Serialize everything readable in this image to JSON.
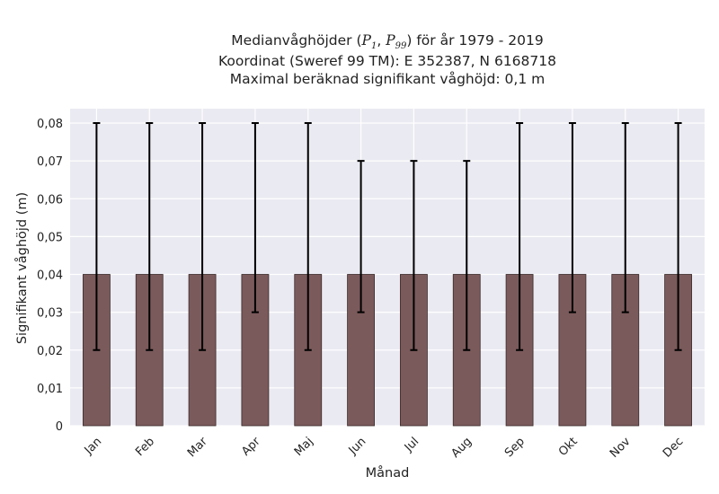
{
  "chart_data": {
    "type": "bar",
    "title_lines": [
      "Medianvåghöjder (P1, P99) för år 1979 - 2019",
      "Koordinat (Sweref 99 TM): E 352387, N 6168718",
      "Maximal beräknad signifikant våghöjd: 0,1 m"
    ],
    "xlabel": "Månad",
    "ylabel": "Signifikant våghöjd (m)",
    "categories": [
      "Jan",
      "Feb",
      "Mar",
      "Apr",
      "Maj",
      "Jun",
      "Jul",
      "Aug",
      "Sep",
      "Okt",
      "Nov",
      "Dec"
    ],
    "values": [
      0.04,
      0.04,
      0.04,
      0.04,
      0.04,
      0.04,
      0.04,
      0.04,
      0.04,
      0.04,
      0.04,
      0.04
    ],
    "p1": [
      0.02,
      0.02,
      0.02,
      0.03,
      0.02,
      0.03,
      0.02,
      0.02,
      0.02,
      0.03,
      0.03,
      0.02
    ],
    "p99": [
      0.08,
      0.08,
      0.08,
      0.08,
      0.08,
      0.07,
      0.07,
      0.07,
      0.08,
      0.08,
      0.08,
      0.08
    ],
    "ylim": [
      0,
      0.08
    ],
    "yticks": [
      "0",
      "0,01",
      "0,02",
      "0,03",
      "0,04",
      "0,05",
      "0,06",
      "0,07",
      "0,08"
    ],
    "grid": true,
    "bar_color": "#7b5a5b",
    "background": "#eaeaf2"
  }
}
